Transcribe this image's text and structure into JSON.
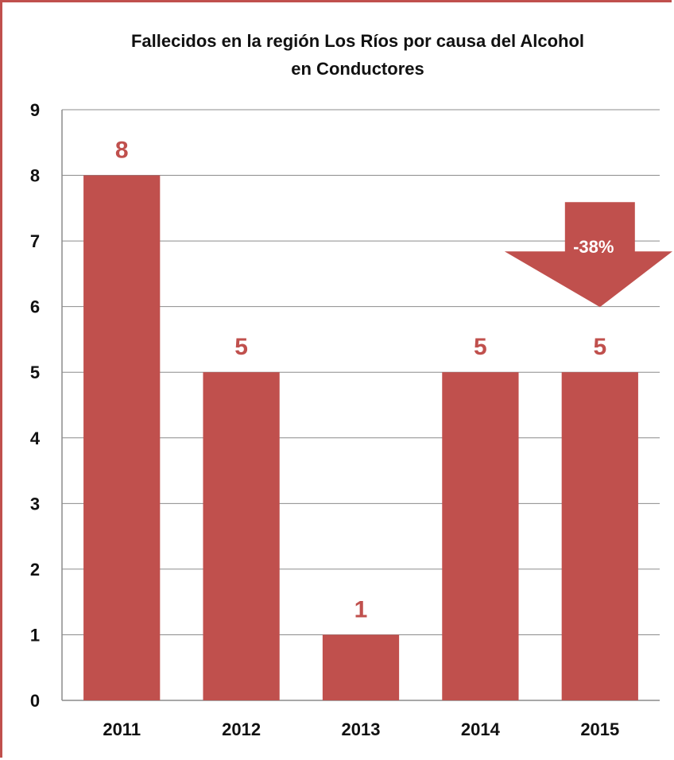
{
  "chart_data": {
    "type": "bar",
    "title_lines": [
      "Fallecidos en la región Los Ríos por causa del Alcohol",
      "en Conductores"
    ],
    "categories": [
      "2011",
      "2012",
      "2013",
      "2014",
      "2015"
    ],
    "values": [
      8,
      5,
      1,
      5,
      5
    ],
    "data_labels": [
      "8",
      "5",
      "1",
      "5",
      "5"
    ],
    "ylim": [
      0,
      9
    ],
    "yticks": [
      0,
      1,
      2,
      3,
      4,
      5,
      6,
      7,
      8,
      9
    ],
    "grid": true,
    "legend": "none",
    "bar_color": "#c0504d",
    "annotation": {
      "text": "-38%",
      "shape": "down-arrow",
      "category": "2015"
    }
  }
}
